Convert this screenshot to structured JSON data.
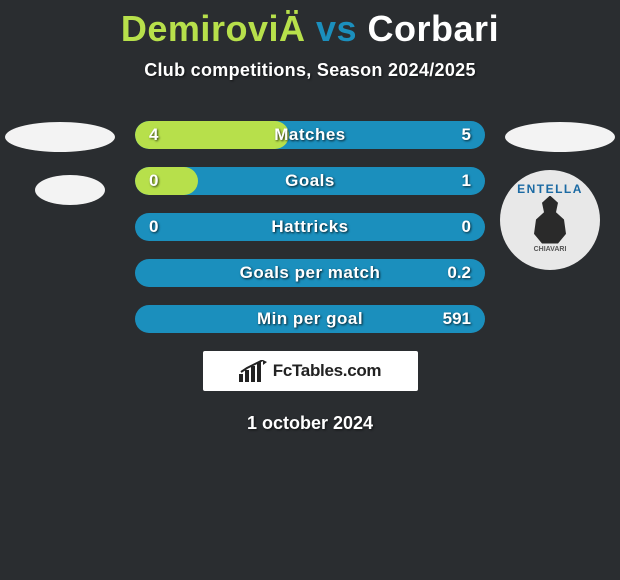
{
  "title": {
    "player1": "DemiroviÄ",
    "vs": "vs",
    "player2": "Corbari"
  },
  "subtitle": "Club competitions, Season 2024/2025",
  "badge": {
    "top": "ENTELLA",
    "bottom": "CHIAVARI"
  },
  "rows": [
    {
      "label": "Matches",
      "left": "4",
      "right": "5",
      "left_pct": 44
    },
    {
      "label": "Goals",
      "left": "0",
      "right": "1",
      "left_pct": 18
    },
    {
      "label": "Hattricks",
      "left": "0",
      "right": "0",
      "left_pct": 0
    },
    {
      "label": "Goals per match",
      "left": "",
      "right": "0.2",
      "left_pct": 0
    },
    {
      "label": "Min per goal",
      "left": "",
      "right": "591",
      "left_pct": 0
    }
  ],
  "colors": {
    "bg": "#2a2d30",
    "p1": "#b7e04b",
    "p2": "#1b8fbd"
  },
  "brand": "FcTables.com",
  "date": "1 october 2024"
}
